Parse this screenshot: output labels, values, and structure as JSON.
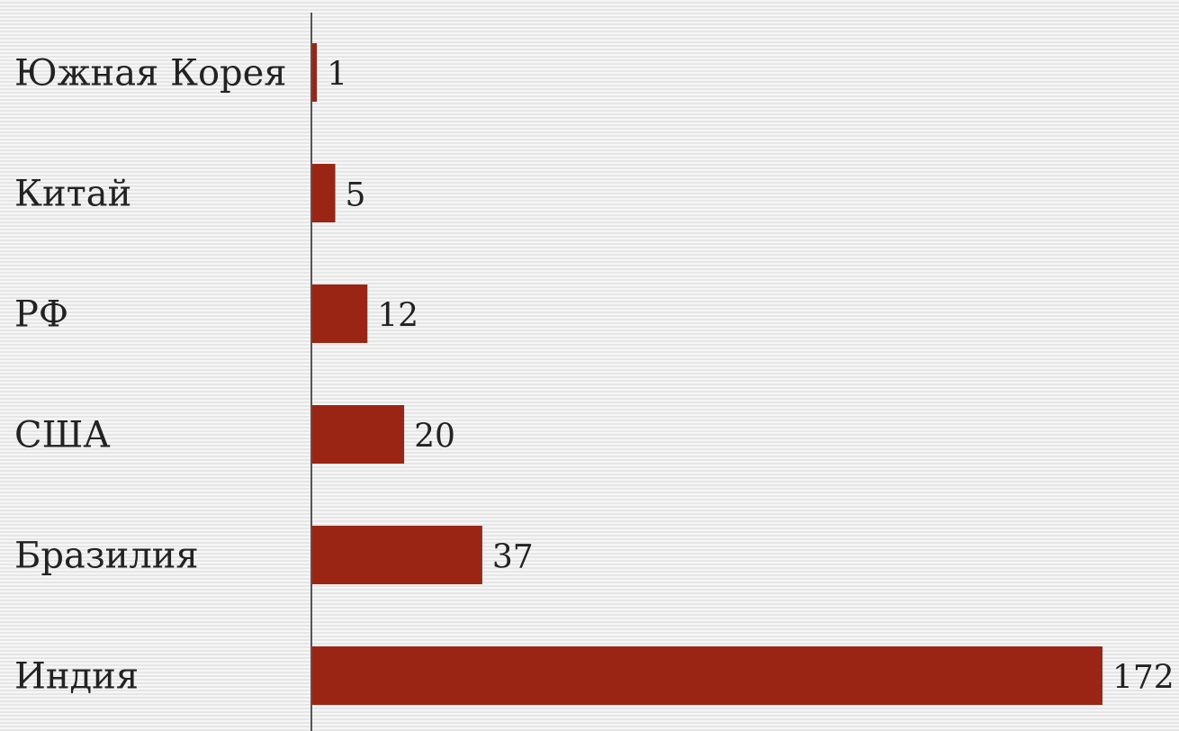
{
  "chart_data": {
    "type": "bar",
    "orientation": "horizontal",
    "title": "",
    "xlabel": "",
    "ylabel": "",
    "categories": [
      "Южная Корея",
      "Китай",
      "РФ",
      "США",
      "Бразилия",
      "Индия"
    ],
    "values": [
      1,
      5,
      12,
      20,
      37,
      172
    ],
    "value_labels": [
      "1",
      "5",
      "12",
      "20",
      "37",
      "172"
    ],
    "bar_color": "#9b2515",
    "grid": false,
    "legend": "none"
  }
}
